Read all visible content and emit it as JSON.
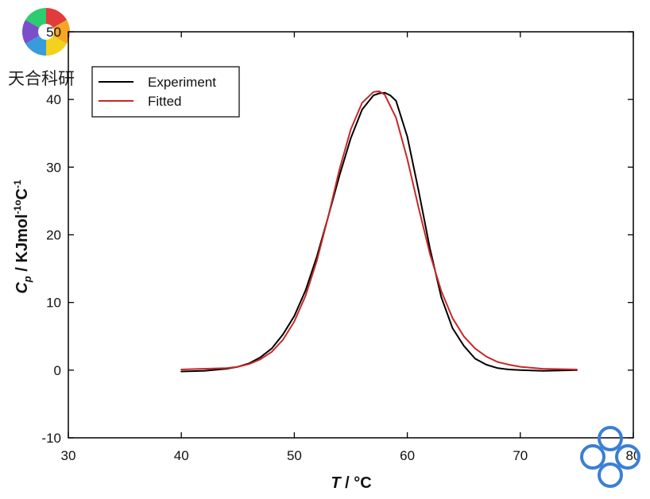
{
  "watermark": {
    "text": "天合科研",
    "logo_colors": [
      "#e23b3b",
      "#f5a623",
      "#f2d21b",
      "#3a9bdc",
      "#7a4fc9",
      "#2ecc71"
    ],
    "corner_logo_color": "#3b7fd4"
  },
  "chart_data": {
    "type": "line",
    "xlabel_main": "T",
    "xlabel_unit": " / °C",
    "ylabel_main": "C",
    "ylabel_sub": "p",
    "ylabel_unit": " / KJmol",
    "ylabel_sup1": "-1",
    "ylabel_mid": "o",
    "ylabel_c": "C",
    "ylabel_sup2": "-1",
    "xlim": [
      30,
      80
    ],
    "ylim": [
      -10,
      50
    ],
    "xticks": [
      30,
      40,
      50,
      60,
      70,
      80
    ],
    "yticks": [
      -10,
      0,
      10,
      20,
      30,
      40,
      50
    ],
    "xtick_labels": [
      "30",
      "40",
      "50",
      "60",
      "70",
      "80"
    ],
    "ytick_labels": [
      "-10",
      "0",
      "10",
      "20",
      "30",
      "40",
      "50"
    ],
    "legend_position": "top-left",
    "grid": false,
    "series": [
      {
        "name": "Experiment",
        "color": "#000000",
        "x": [
          40,
          42,
          44,
          45,
          46,
          47,
          48,
          49,
          50,
          51,
          52,
          53,
          54,
          55,
          56,
          57,
          57.5,
          58,
          58.5,
          59,
          60,
          61,
          62,
          63,
          64,
          65,
          66,
          67,
          68,
          69,
          70,
          72,
          75
        ],
        "y": [
          -0.2,
          -0.1,
          0.2,
          0.5,
          1.0,
          1.9,
          3.2,
          5.3,
          8.0,
          11.8,
          16.8,
          22.7,
          28.8,
          34.3,
          38.5,
          40.6,
          40.9,
          41.0,
          40.6,
          39.8,
          34.5,
          26.5,
          18.0,
          10.8,
          6.2,
          3.6,
          1.7,
          0.8,
          0.3,
          0.1,
          0.0,
          -0.1,
          0.0
        ]
      },
      {
        "name": "Fitted",
        "color": "#c62828",
        "x": [
          40,
          42,
          44,
          45,
          46,
          47,
          48,
          49,
          50,
          51,
          52,
          53,
          54,
          55,
          56,
          57,
          57.5,
          58,
          59,
          60,
          61,
          62,
          63,
          64,
          65,
          66,
          67,
          68,
          69,
          70,
          72,
          75
        ],
        "y": [
          0.1,
          0.2,
          0.3,
          0.5,
          0.9,
          1.6,
          2.7,
          4.5,
          7.2,
          11.0,
          16.2,
          22.7,
          29.7,
          35.6,
          39.5,
          41.1,
          41.2,
          40.7,
          37.3,
          31.2,
          24.0,
          17.2,
          11.7,
          7.7,
          5.0,
          3.2,
          2.0,
          1.2,
          0.8,
          0.5,
          0.2,
          0.1
        ]
      }
    ]
  }
}
